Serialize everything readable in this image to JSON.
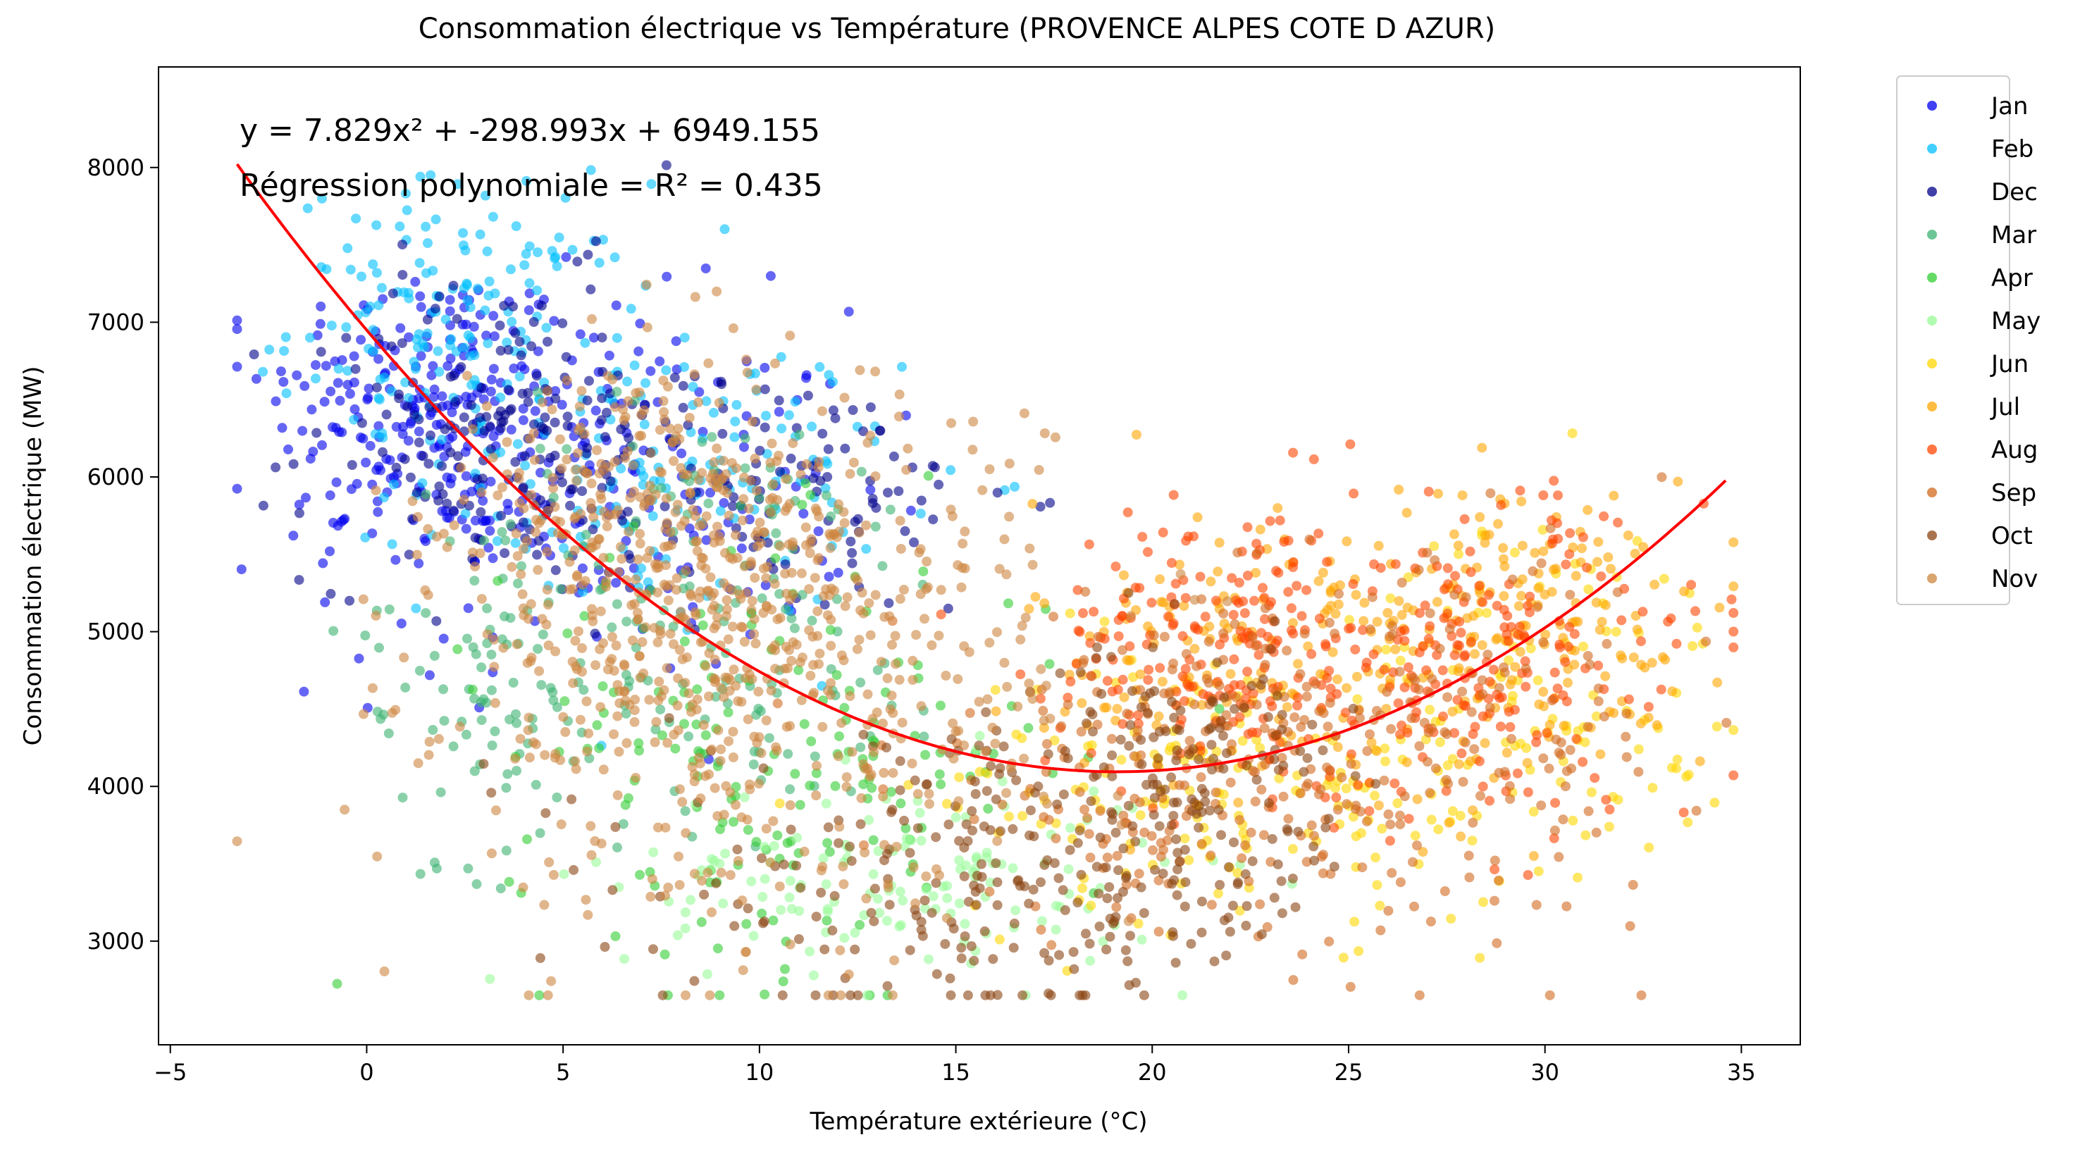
{
  "chart_data": {
    "type": "scatter",
    "title": "Consommation électrique vs Température (PROVENCE ALPES COTE D AZUR)",
    "xlabel": "Température extérieure (°C)",
    "ylabel": "Consommation électrique (MW)",
    "xlim": [
      -5.3,
      36.5
    ],
    "ylim": [
      2330,
      8650
    ],
    "xticks": [
      -5,
      0,
      5,
      10,
      15,
      20,
      25,
      30,
      35
    ],
    "xtick_labels": [
      "−5",
      "0",
      "5",
      "10",
      "15",
      "20",
      "25",
      "30",
      "35"
    ],
    "yticks": [
      3000,
      4000,
      5000,
      6000,
      7000,
      8000
    ],
    "ytick_labels": [
      "3000",
      "4000",
      "5000",
      "6000",
      "7000",
      "8000"
    ],
    "grid": false,
    "legend_position": "outside-top-right",
    "annotation_equation": "y = 7.829x² + -298.993x + 6949.155",
    "annotation_r2": "Régression polynomiale = R² = 0.435",
    "fit": {
      "type": "polynomial",
      "degree": 2,
      "coefficients": [
        7.829,
        -298.993,
        6949.155
      ],
      "x_range": [
        -3.3,
        34.6
      ],
      "color": "#ff0000"
    },
    "series": [
      {
        "name": "Jan",
        "color": "#0000ee",
        "clusters": [
          {
            "cx": 1.5,
            "cy": 6500,
            "sx": 2.0,
            "sy": 450,
            "n": 190
          },
          {
            "cx": 5.5,
            "cy": 5900,
            "sx": 3.5,
            "sy": 600,
            "n": 210
          }
        ]
      },
      {
        "name": "Feb",
        "color": "#00bfff",
        "clusters": [
          {
            "cx": 2.5,
            "cy": 7000,
            "sx": 2.2,
            "sy": 450,
            "n": 160
          },
          {
            "cx": 7.5,
            "cy": 6000,
            "sx": 3.0,
            "sy": 450,
            "n": 150
          }
        ]
      },
      {
        "name": "Dec",
        "color": "#00008b",
        "clusters": [
          {
            "cx": 3.5,
            "cy": 6300,
            "sx": 2.5,
            "sy": 500,
            "n": 190
          },
          {
            "cx": 10.5,
            "cy": 5900,
            "sx": 3.0,
            "sy": 400,
            "n": 110
          }
        ]
      },
      {
        "name": "Mar",
        "color": "#3cb371",
        "clusters": [
          {
            "cx": 8.5,
            "cy": 5100,
            "sx": 3.5,
            "sy": 700,
            "n": 170
          },
          {
            "cx": 3.0,
            "cy": 4500,
            "sx": 1.5,
            "sy": 500,
            "n": 60
          }
        ]
      },
      {
        "name": "Apr",
        "color": "#32cd32",
        "clusters": [
          {
            "cx": 10.5,
            "cy": 4200,
            "sx": 3.5,
            "sy": 700,
            "n": 170
          }
        ]
      },
      {
        "name": "May",
        "color": "#98fb98",
        "clusters": [
          {
            "cx": 13.5,
            "cy": 3400,
            "sx": 3.5,
            "sy": 350,
            "n": 140
          }
        ]
      },
      {
        "name": "Jun",
        "color": "#ffd700",
        "clusters": [
          {
            "cx": 22.5,
            "cy": 4000,
            "sx": 4.0,
            "sy": 450,
            "n": 190
          },
          {
            "cx": 30.5,
            "cy": 4700,
            "sx": 2.2,
            "sy": 550,
            "n": 80
          }
        ]
      },
      {
        "name": "Jul",
        "color": "#ffa500",
        "clusters": [
          {
            "cx": 23.0,
            "cy": 4900,
            "sx": 3.0,
            "sy": 500,
            "n": 160
          },
          {
            "cx": 29.5,
            "cy": 5000,
            "sx": 2.5,
            "sy": 500,
            "n": 170
          }
        ]
      },
      {
        "name": "Aug",
        "color": "#ff4500",
        "clusters": [
          {
            "cx": 22.0,
            "cy": 4900,
            "sx": 2.3,
            "sy": 450,
            "n": 210
          },
          {
            "cx": 28.5,
            "cy": 4800,
            "sx": 2.8,
            "sy": 550,
            "n": 200
          }
        ]
      },
      {
        "name": "Sep",
        "color": "#d2691e",
        "clusters": [
          {
            "cx": 21.5,
            "cy": 4100,
            "sx": 4.0,
            "sy": 550,
            "n": 230
          },
          {
            "cx": 27.5,
            "cy": 4300,
            "sx": 3.0,
            "sy": 600,
            "n": 130
          }
        ]
      },
      {
        "name": "Oct",
        "color": "#8b4513",
        "clusters": [
          {
            "cx": 16.5,
            "cy": 3400,
            "sx": 4.5,
            "sy": 450,
            "n": 270
          },
          {
            "cx": 21.0,
            "cy": 4200,
            "sx": 1.8,
            "sy": 350,
            "n": 110
          }
        ]
      },
      {
        "name": "Nov",
        "color": "#cd853f",
        "clusters": [
          {
            "cx": 9.5,
            "cy": 4900,
            "sx": 3.8,
            "sy": 850,
            "n": 680
          },
          {
            "cx": 7.0,
            "cy": 5800,
            "sx": 2.2,
            "sy": 450,
            "n": 160
          }
        ]
      }
    ]
  }
}
